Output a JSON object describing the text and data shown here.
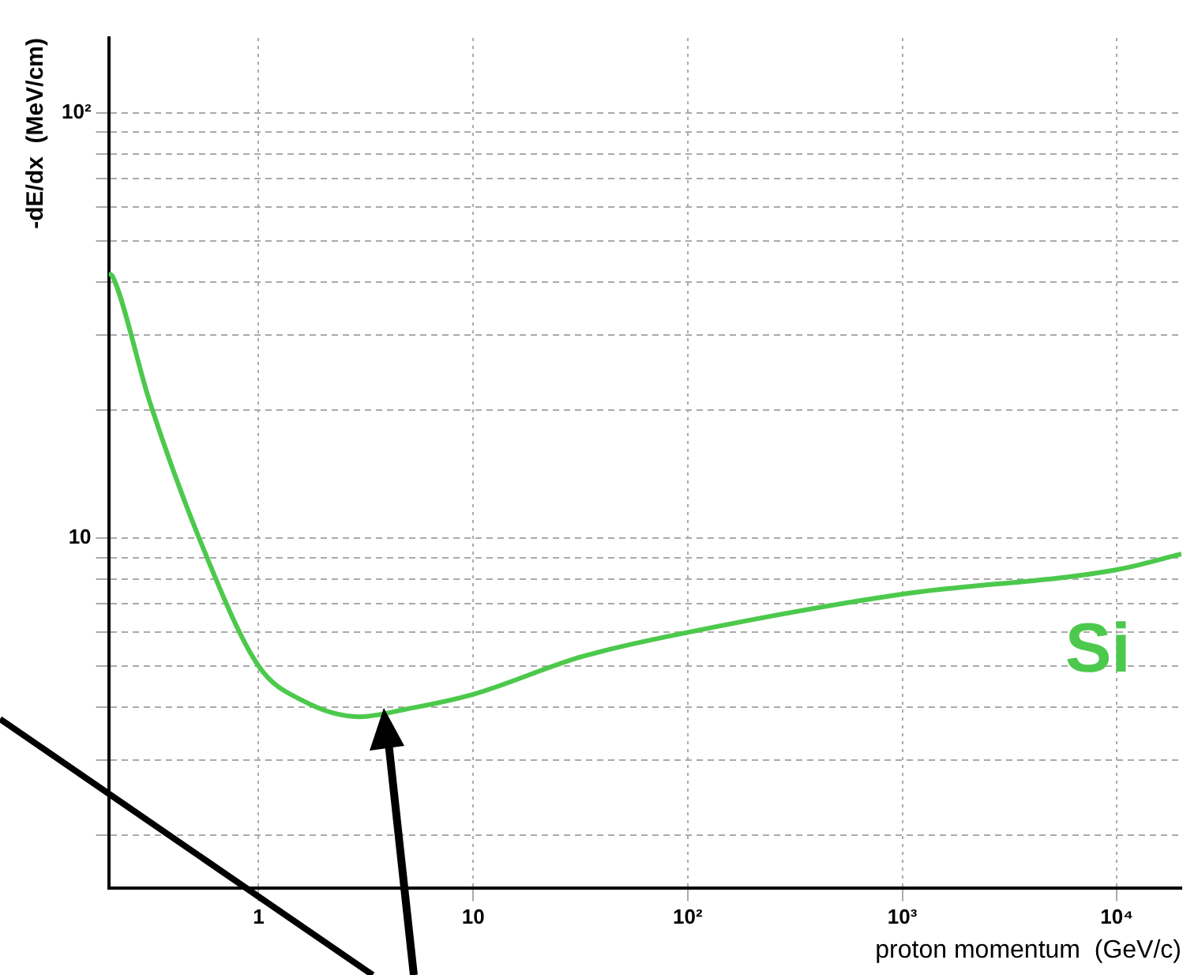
{
  "chart_data": {
    "type": "line",
    "xlabel": "proton momentum  (GeV/c)",
    "ylabel": "-dE/dx  (MeV/cm)",
    "log": "xy",
    "grid": true,
    "legend": false,
    "marker": "none",
    "line_style": "solid",
    "xlim": [
      0.2,
      20000
    ],
    "ylim": [
      1.5,
      150
    ],
    "xticks": [
      {
        "value": 1,
        "label": "1"
      },
      {
        "value": 10,
        "label": "10"
      },
      {
        "value": 100,
        "label": "10²"
      },
      {
        "value": 1000,
        "label": "10³"
      },
      {
        "value": 10000,
        "label": "10⁴"
      }
    ],
    "yticks": [
      {
        "value": 2,
        "label": null
      },
      {
        "value": 3,
        "label": null
      },
      {
        "value": 4,
        "label": null
      },
      {
        "value": 5,
        "label": null
      },
      {
        "value": 6,
        "label": null
      },
      {
        "value": 7,
        "label": null
      },
      {
        "value": 8,
        "label": null
      },
      {
        "value": 9,
        "label": null
      },
      {
        "value": 10,
        "label": "10"
      },
      {
        "value": 20,
        "label": null
      },
      {
        "value": 30,
        "label": null
      },
      {
        "value": 40,
        "label": null
      },
      {
        "value": 50,
        "label": null
      },
      {
        "value": 60,
        "label": null
      },
      {
        "value": 70,
        "label": null
      },
      {
        "value": 80,
        "label": null
      },
      {
        "value": 90,
        "label": null
      },
      {
        "value": 100,
        "label": "10²"
      }
    ],
    "series": [
      {
        "name": "Si",
        "color": "#4cc94c",
        "x": [
          0.2,
          0.21,
          0.31,
          0.55,
          1.0,
          1.63,
          2.96,
          5.0,
          10,
          32,
          100,
          1000,
          9800,
          20000
        ],
        "values": [
          42,
          41,
          21,
          9.5,
          5.0,
          4.13,
          3.8,
          3.97,
          4.29,
          5.26,
          6.0,
          7.38,
          8.41,
          9.17
        ]
      }
    ]
  }
}
